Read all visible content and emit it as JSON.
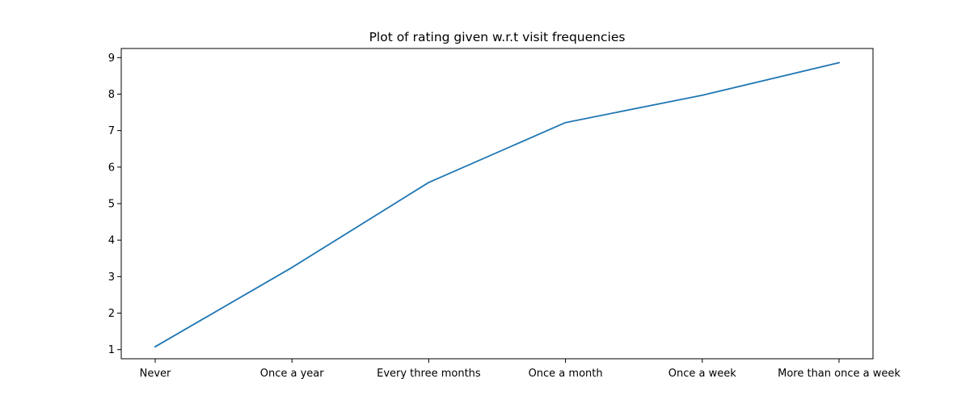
{
  "chart_data": {
    "type": "line",
    "title": "Plot of rating given w.r.t visit frequencies",
    "xlabel": "",
    "ylabel": "",
    "categories": [
      "Never",
      "Once a year",
      "Every three months",
      "Once a month",
      "Once a week",
      "More than once a week"
    ],
    "series": [
      {
        "values": [
          1.08,
          3.25,
          5.58,
          7.22,
          7.97,
          8.86
        ],
        "color": "#1f77b4"
      }
    ],
    "ylim": [
      0.75,
      9.25
    ],
    "yticks": [
      1,
      2,
      3,
      4,
      5,
      6,
      7,
      8,
      9
    ],
    "grid": false,
    "legend": "none"
  }
}
